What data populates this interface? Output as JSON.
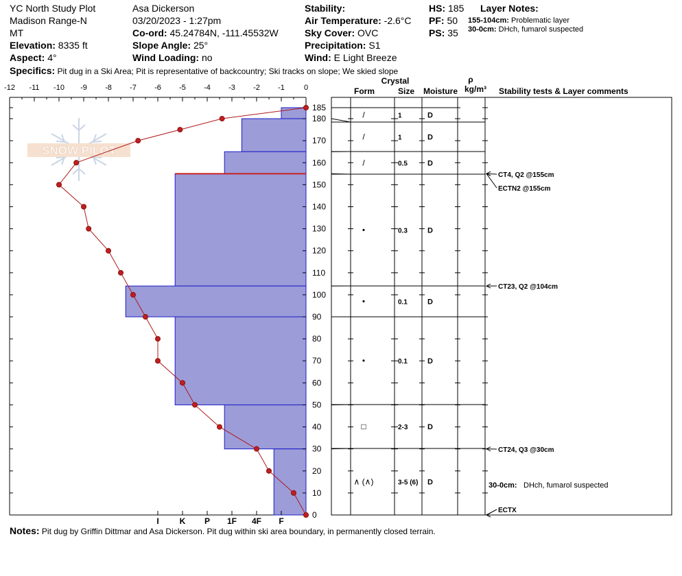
{
  "header": {
    "site_name": "YC North Study Plot",
    "range": "Madison Range-N",
    "state": "MT",
    "elevation_label": "Elevation:",
    "elevation": "8335 ft",
    "aspect_label": "Aspect:",
    "aspect": "4°",
    "observer": "Asa Dickerson",
    "datetime": "03/20/2023 - 1:27pm",
    "coord_label": "Co-ord:",
    "coord": "45.24784N, -111.45532W",
    "slope_label": "Slope Angle:",
    "slope": "25°",
    "wind_loading_label": "Wind Loading:",
    "wind_loading": "no",
    "stability_label": "Stability:",
    "stability": "",
    "air_temp_label": "Air Temperature:",
    "air_temp": "-2.6°C",
    "sky_label": "Sky Cover:",
    "sky": "OVC",
    "precip_label": "Precipitation:",
    "precip": "S1",
    "wind_label": "Wind:",
    "wind": "E Light Breeze",
    "hs_label": "HS:",
    "hs": "185",
    "pf_label": "PF:",
    "pf": "50",
    "ps_label": "PS:",
    "ps": "35",
    "layer_notes_title": "Layer Notes:",
    "layer_note_1_range": "155-104cm:",
    "layer_note_1_text": "Problematic layer",
    "layer_note_2_range": "30-0cm:",
    "layer_note_2_text": "DHch, fumarol suspected",
    "specifics_label": "Specifics:",
    "specifics": "Pit dug in a Ski Area; Pit is representative of backcountry; Ski tracks on slope; We skied slope"
  },
  "notes": {
    "label": "Notes:",
    "text": "Pit dug by Griffin Dittmar and Asa Dickerson. Pit dug within ski area boundary, in permanently closed terrain."
  },
  "logo_text": "SNOW PILOT",
  "chart_data": {
    "type": "snow-profile",
    "temp_axis_ticks": [
      "-12",
      "-11",
      "-10",
      "-9",
      "-8",
      "-7",
      "-6",
      "-5",
      "-4",
      "-3",
      "-2",
      "-1",
      "0"
    ],
    "hardness_axis_labels": [
      "I",
      "K",
      "P",
      "1F",
      "4F",
      "F"
    ],
    "depth_ticks": [
      0,
      10,
      20,
      30,
      40,
      50,
      60,
      70,
      80,
      90,
      100,
      110,
      120,
      130,
      140,
      150,
      160,
      170,
      180,
      185
    ],
    "depth_range": [
      0,
      185
    ],
    "temp_range": [
      -12,
      0
    ],
    "hardness_layers": [
      {
        "top": 185,
        "bottom": 180,
        "hardness_steps": 1
      },
      {
        "top": 180,
        "bottom": 165,
        "hardness_steps": 2.6
      },
      {
        "top": 165,
        "bottom": 155,
        "hardness_steps": 3.3
      },
      {
        "top": 155,
        "bottom": 104,
        "hardness_steps": 5.3
      },
      {
        "top": 104,
        "bottom": 90,
        "hardness_steps": 7.3
      },
      {
        "top": 90,
        "bottom": 50,
        "hardness_steps": 5.3
      },
      {
        "top": 50,
        "bottom": 30,
        "hardness_steps": 3.3
      },
      {
        "top": 30,
        "bottom": 0,
        "hardness_steps": 1.3
      }
    ],
    "problem_line_depth": 155,
    "temperature_profile": [
      {
        "depth": 185,
        "temp": 0.0
      },
      {
        "depth": 180,
        "temp": -3.4
      },
      {
        "depth": 175,
        "temp": -5.1
      },
      {
        "depth": 170,
        "temp": -6.8
      },
      {
        "depth": 160,
        "temp": -9.3
      },
      {
        "depth": 150,
        "temp": -10.0
      },
      {
        "depth": 140,
        "temp": -9.0
      },
      {
        "depth": 130,
        "temp": -8.8
      },
      {
        "depth": 120,
        "temp": -8.0
      },
      {
        "depth": 110,
        "temp": -7.5
      },
      {
        "depth": 100,
        "temp": -7.0
      },
      {
        "depth": 90,
        "temp": -6.5
      },
      {
        "depth": 80,
        "temp": -6.0
      },
      {
        "depth": 70,
        "temp": -6.0
      },
      {
        "depth": 60,
        "temp": -5.0
      },
      {
        "depth": 50,
        "temp": -4.5
      },
      {
        "depth": 40,
        "temp": -3.5
      },
      {
        "depth": 30,
        "temp": -2.0
      },
      {
        "depth": 20,
        "temp": -1.5
      },
      {
        "depth": 10,
        "temp": -0.5
      },
      {
        "depth": 0,
        "temp": 0.0
      }
    ],
    "column_headers": {
      "form": "Form",
      "crystal": "Crystal",
      "size": "Size",
      "moisture": "Moisture",
      "rho": "ρ",
      "rho_units": "kg/m³",
      "stability_comments": "Stability tests & Layer comments"
    },
    "layer_rows": [
      {
        "top": 185,
        "bottom": 180,
        "form": "/",
        "size": "1",
        "moisture": "D"
      },
      {
        "top": 180,
        "bottom": 165,
        "form": "/",
        "size": "1",
        "moisture": "D"
      },
      {
        "top": 165,
        "bottom": 155,
        "form": "/",
        "size": "0.5",
        "moisture": "D"
      },
      {
        "top": 155,
        "bottom": 104,
        "form": "•",
        "size": "0.3",
        "moisture": "D"
      },
      {
        "top": 104,
        "bottom": 90,
        "form": "•",
        "size": "0.1",
        "moisture": "D"
      },
      {
        "top": 90,
        "bottom": 50,
        "form": "•",
        "size": "0.1",
        "moisture": "D"
      },
      {
        "top": 50,
        "bottom": 30,
        "form": "□",
        "size": "2-3",
        "moisture": "D"
      },
      {
        "top": 30,
        "bottom": 0,
        "form": "∧ (∧)",
        "size": "3-5 (6)",
        "moisture": "D"
      }
    ],
    "stability_tests": [
      {
        "depth": 155,
        "text": "CT4, Q2 @155cm"
      },
      {
        "depth": 155,
        "text": "ECTN2 @155cm"
      },
      {
        "depth": 104,
        "text": "CT23, Q2 @104cm"
      },
      {
        "depth": 30,
        "text": "CT24, Q3 @30cm"
      },
      {
        "depth": 0,
        "text": "ECTX"
      }
    ],
    "layer_comment": {
      "range": "30-0cm:",
      "text": "DHch, fumarol suspected"
    }
  }
}
